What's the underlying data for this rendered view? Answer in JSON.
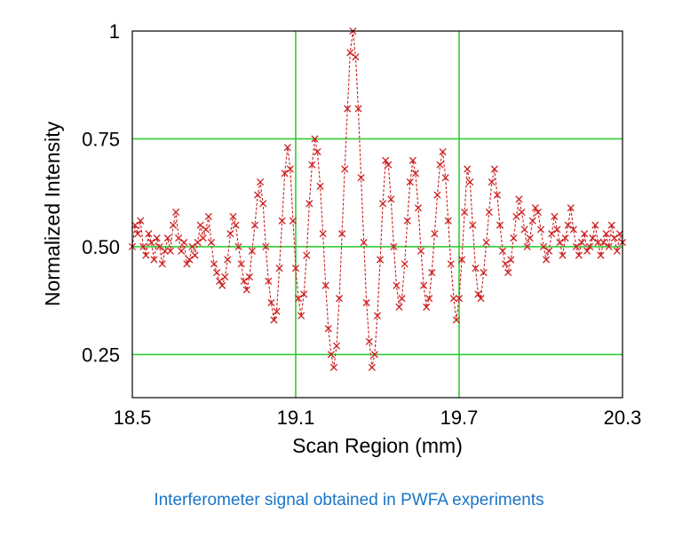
{
  "caption": "Interferometer signal obtained in PWFA experiments",
  "chart_data": {
    "type": "scatter",
    "title": "",
    "xlabel": "Scan Region (mm)",
    "ylabel": "Normalized Intensity",
    "xlim": [
      18.5,
      20.3
    ],
    "ylim": [
      0.15,
      1.0
    ],
    "x_ticks": [
      18.5,
      19.1,
      19.7,
      20.3
    ],
    "x_tick_labels": [
      "18.5",
      "19.1",
      "19.7",
      "20.3"
    ],
    "y_ticks": [
      0.25,
      0.5,
      0.75,
      1.0
    ],
    "y_tick_labels": [
      "0.25",
      "0.50",
      "0.75",
      "1"
    ],
    "grid_x": [
      19.1,
      19.7
    ],
    "grid_y": [
      0.25,
      0.5,
      0.75
    ],
    "grid_color": "#33cc33",
    "marker": "x",
    "series_color": "#cc1f1f",
    "line_style": "dashed",
    "series": [
      {
        "values": [
          [
            18.5,
            0.5
          ],
          [
            18.51,
            0.55
          ],
          [
            18.52,
            0.53
          ],
          [
            18.53,
            0.56
          ],
          [
            18.54,
            0.5
          ],
          [
            18.55,
            0.48
          ],
          [
            18.56,
            0.53
          ],
          [
            18.57,
            0.51
          ],
          [
            18.58,
            0.47
          ],
          [
            18.59,
            0.52
          ],
          [
            18.6,
            0.5
          ],
          [
            18.61,
            0.46
          ],
          [
            18.62,
            0.49
          ],
          [
            18.63,
            0.52
          ],
          [
            18.64,
            0.49
          ],
          [
            18.65,
            0.55
          ],
          [
            18.66,
            0.58
          ],
          [
            18.67,
            0.52
          ],
          [
            18.68,
            0.49
          ],
          [
            18.69,
            0.51
          ],
          [
            18.7,
            0.46
          ],
          [
            18.71,
            0.47
          ],
          [
            18.72,
            0.5
          ],
          [
            18.73,
            0.48
          ],
          [
            18.74,
            0.51
          ],
          [
            18.75,
            0.55
          ],
          [
            18.76,
            0.52
          ],
          [
            18.77,
            0.54
          ],
          [
            18.78,
            0.57
          ],
          [
            18.79,
            0.51
          ],
          [
            18.8,
            0.46
          ],
          [
            18.81,
            0.44
          ],
          [
            18.82,
            0.42
          ],
          [
            18.83,
            0.41
          ],
          [
            18.84,
            0.43
          ],
          [
            18.85,
            0.47
          ],
          [
            18.86,
            0.53
          ],
          [
            18.87,
            0.57
          ],
          [
            18.88,
            0.55
          ],
          [
            18.89,
            0.5
          ],
          [
            18.9,
            0.46
          ],
          [
            18.91,
            0.42
          ],
          [
            18.92,
            0.4
          ],
          [
            18.93,
            0.43
          ],
          [
            18.94,
            0.49
          ],
          [
            18.95,
            0.55
          ],
          [
            18.96,
            0.62
          ],
          [
            18.97,
            0.65
          ],
          [
            18.98,
            0.6
          ],
          [
            18.99,
            0.5
          ],
          [
            19.0,
            0.42
          ],
          [
            19.01,
            0.37
          ],
          [
            19.02,
            0.33
          ],
          [
            19.03,
            0.35
          ],
          [
            19.04,
            0.45
          ],
          [
            19.05,
            0.56
          ],
          [
            19.06,
            0.67
          ],
          [
            19.07,
            0.73
          ],
          [
            19.08,
            0.68
          ],
          [
            19.09,
            0.56
          ],
          [
            19.1,
            0.45
          ],
          [
            19.11,
            0.38
          ],
          [
            19.12,
            0.34
          ],
          [
            19.13,
            0.39
          ],
          [
            19.14,
            0.48
          ],
          [
            19.15,
            0.6
          ],
          [
            19.16,
            0.69
          ],
          [
            19.17,
            0.75
          ],
          [
            19.18,
            0.72
          ],
          [
            19.19,
            0.64
          ],
          [
            19.2,
            0.53
          ],
          [
            19.21,
            0.41
          ],
          [
            19.22,
            0.31
          ],
          [
            19.23,
            0.25
          ],
          [
            19.24,
            0.22
          ],
          [
            19.25,
            0.27
          ],
          [
            19.26,
            0.38
          ],
          [
            19.27,
            0.53
          ],
          [
            19.28,
            0.68
          ],
          [
            19.29,
            0.82
          ],
          [
            19.3,
            0.95
          ],
          [
            19.31,
            1.0
          ],
          [
            19.32,
            0.94
          ],
          [
            19.33,
            0.82
          ],
          [
            19.34,
            0.66
          ],
          [
            19.35,
            0.51
          ],
          [
            19.36,
            0.37
          ],
          [
            19.37,
            0.28
          ],
          [
            19.38,
            0.22
          ],
          [
            19.39,
            0.25
          ],
          [
            19.4,
            0.34
          ],
          [
            19.41,
            0.47
          ],
          [
            19.42,
            0.6
          ],
          [
            19.43,
            0.7
          ],
          [
            19.44,
            0.69
          ],
          [
            19.45,
            0.61
          ],
          [
            19.46,
            0.5
          ],
          [
            19.47,
            0.41
          ],
          [
            19.48,
            0.36
          ],
          [
            19.49,
            0.38
          ],
          [
            19.5,
            0.46
          ],
          [
            19.51,
            0.56
          ],
          [
            19.52,
            0.65
          ],
          [
            19.53,
            0.7
          ],
          [
            19.54,
            0.67
          ],
          [
            19.55,
            0.59
          ],
          [
            19.56,
            0.49
          ],
          [
            19.57,
            0.41
          ],
          [
            19.58,
            0.36
          ],
          [
            19.59,
            0.38
          ],
          [
            19.6,
            0.44
          ],
          [
            19.61,
            0.53
          ],
          [
            19.62,
            0.62
          ],
          [
            19.63,
            0.69
          ],
          [
            19.64,
            0.72
          ],
          [
            19.65,
            0.66
          ],
          [
            19.66,
            0.56
          ],
          [
            19.67,
            0.46
          ],
          [
            19.68,
            0.38
          ],
          [
            19.69,
            0.33
          ],
          [
            19.7,
            0.38
          ],
          [
            19.71,
            0.47
          ],
          [
            19.72,
            0.58
          ],
          [
            19.73,
            0.68
          ],
          [
            19.74,
            0.65
          ],
          [
            19.75,
            0.55
          ],
          [
            19.76,
            0.45
          ],
          [
            19.77,
            0.39
          ],
          [
            19.78,
            0.38
          ],
          [
            19.79,
            0.44
          ],
          [
            19.8,
            0.51
          ],
          [
            19.81,
            0.58
          ],
          [
            19.82,
            0.65
          ],
          [
            19.83,
            0.68
          ],
          [
            19.84,
            0.62
          ],
          [
            19.85,
            0.55
          ],
          [
            19.86,
            0.49
          ],
          [
            19.87,
            0.46
          ],
          [
            19.88,
            0.44
          ],
          [
            19.89,
            0.47
          ],
          [
            19.9,
            0.52
          ],
          [
            19.91,
            0.57
          ],
          [
            19.92,
            0.61
          ],
          [
            19.93,
            0.58
          ],
          [
            19.94,
            0.54
          ],
          [
            19.95,
            0.5
          ],
          [
            19.96,
            0.52
          ],
          [
            19.97,
            0.56
          ],
          [
            19.98,
            0.59
          ],
          [
            19.99,
            0.58
          ],
          [
            20.0,
            0.54
          ],
          [
            20.01,
            0.5
          ],
          [
            20.02,
            0.47
          ],
          [
            20.03,
            0.49
          ],
          [
            20.04,
            0.53
          ],
          [
            20.05,
            0.57
          ],
          [
            20.06,
            0.54
          ],
          [
            20.07,
            0.51
          ],
          [
            20.08,
            0.48
          ],
          [
            20.09,
            0.52
          ],
          [
            20.1,
            0.55
          ],
          [
            20.11,
            0.59
          ],
          [
            20.12,
            0.54
          ],
          [
            20.13,
            0.5
          ],
          [
            20.14,
            0.48
          ],
          [
            20.15,
            0.51
          ],
          [
            20.16,
            0.53
          ],
          [
            20.17,
            0.49
          ],
          [
            20.18,
            0.5
          ],
          [
            20.19,
            0.52
          ],
          [
            20.2,
            0.55
          ],
          [
            20.21,
            0.51
          ],
          [
            20.22,
            0.48
          ],
          [
            20.23,
            0.51
          ],
          [
            20.24,
            0.53
          ],
          [
            20.25,
            0.5
          ],
          [
            20.26,
            0.55
          ],
          [
            20.27,
            0.52
          ],
          [
            20.28,
            0.49
          ],
          [
            20.29,
            0.53
          ],
          [
            20.3,
            0.51
          ]
        ]
      }
    ]
  }
}
